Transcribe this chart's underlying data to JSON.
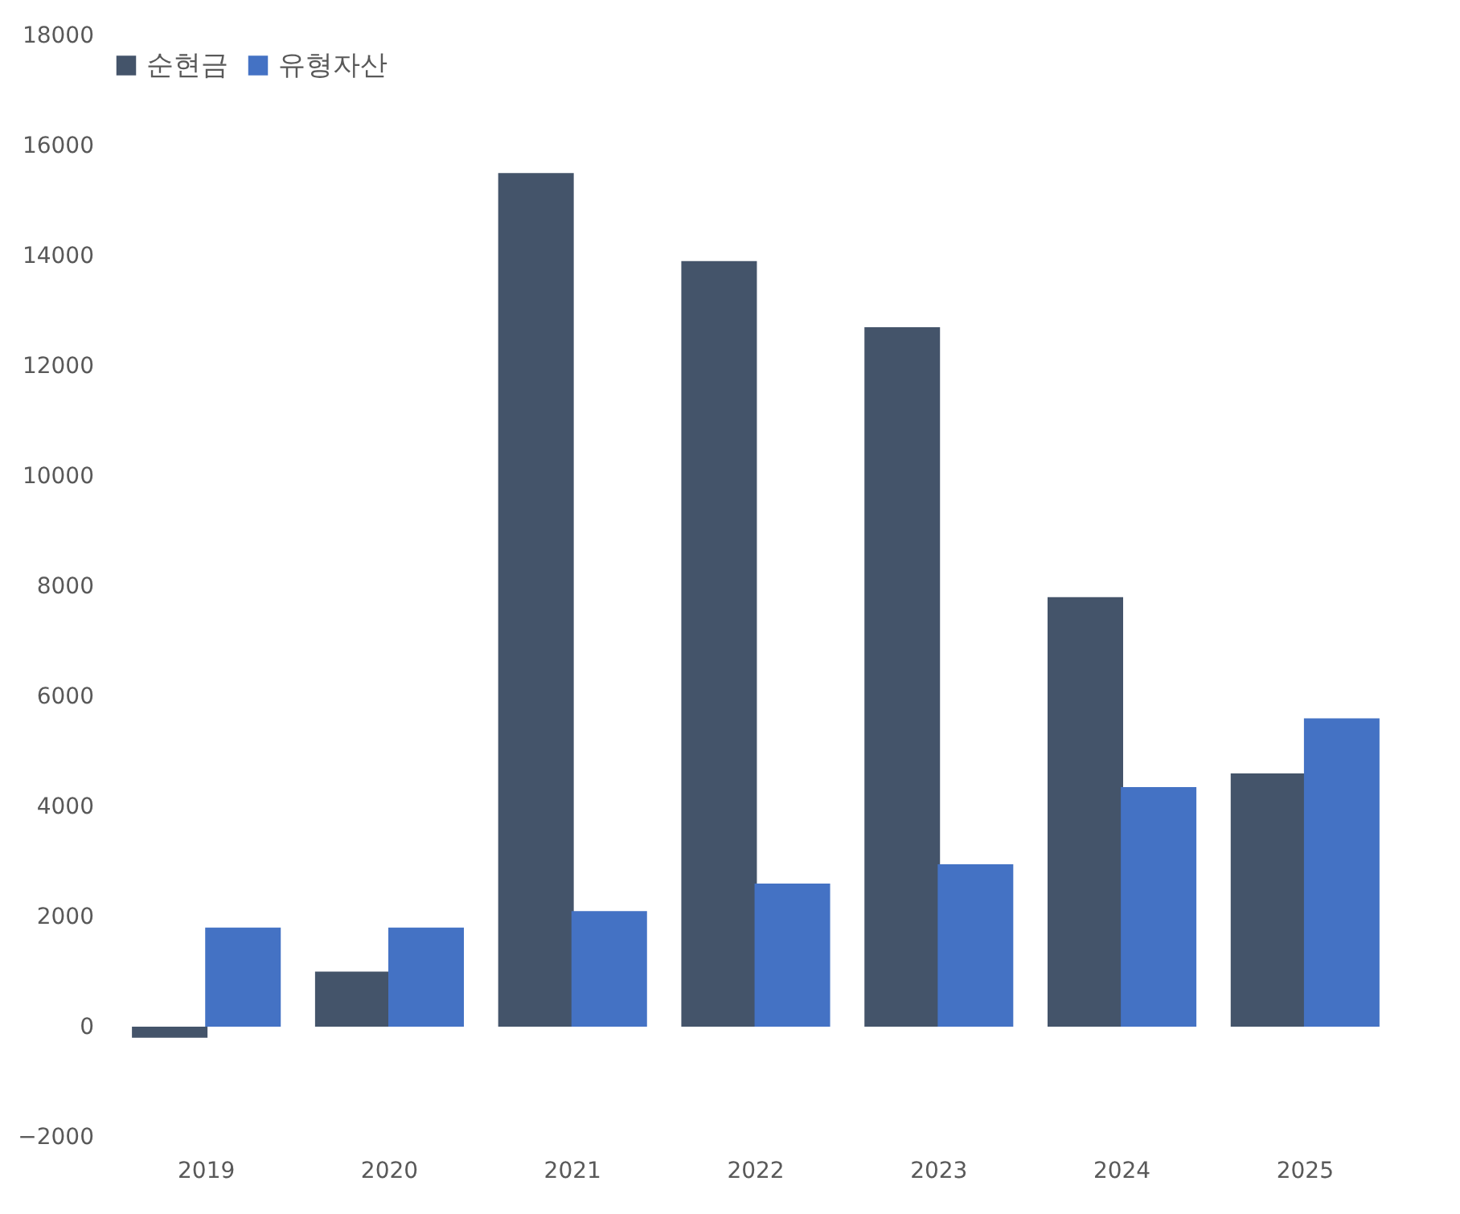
{
  "chart_data": {
    "type": "bar",
    "categories": [
      "2019",
      "2020",
      "2021",
      "2022",
      "2023",
      "2024",
      "2025"
    ],
    "series": [
      {
        "name": "순현금",
        "color": "#44546a",
        "values": [
          -200,
          1000,
          15500,
          13900,
          12700,
          7800,
          4600
        ]
      },
      {
        "name": "유형자산",
        "color": "#4472c4",
        "values": [
          1800,
          1800,
          2100,
          2600,
          2950,
          4350,
          5600
        ]
      }
    ],
    "ylim": [
      -2000,
      18000
    ],
    "yticks": [
      -2000,
      0,
      2000,
      4000,
      6000,
      8000,
      10000,
      12000,
      14000,
      16000,
      18000
    ],
    "grid": false,
    "legend": "top left"
  }
}
